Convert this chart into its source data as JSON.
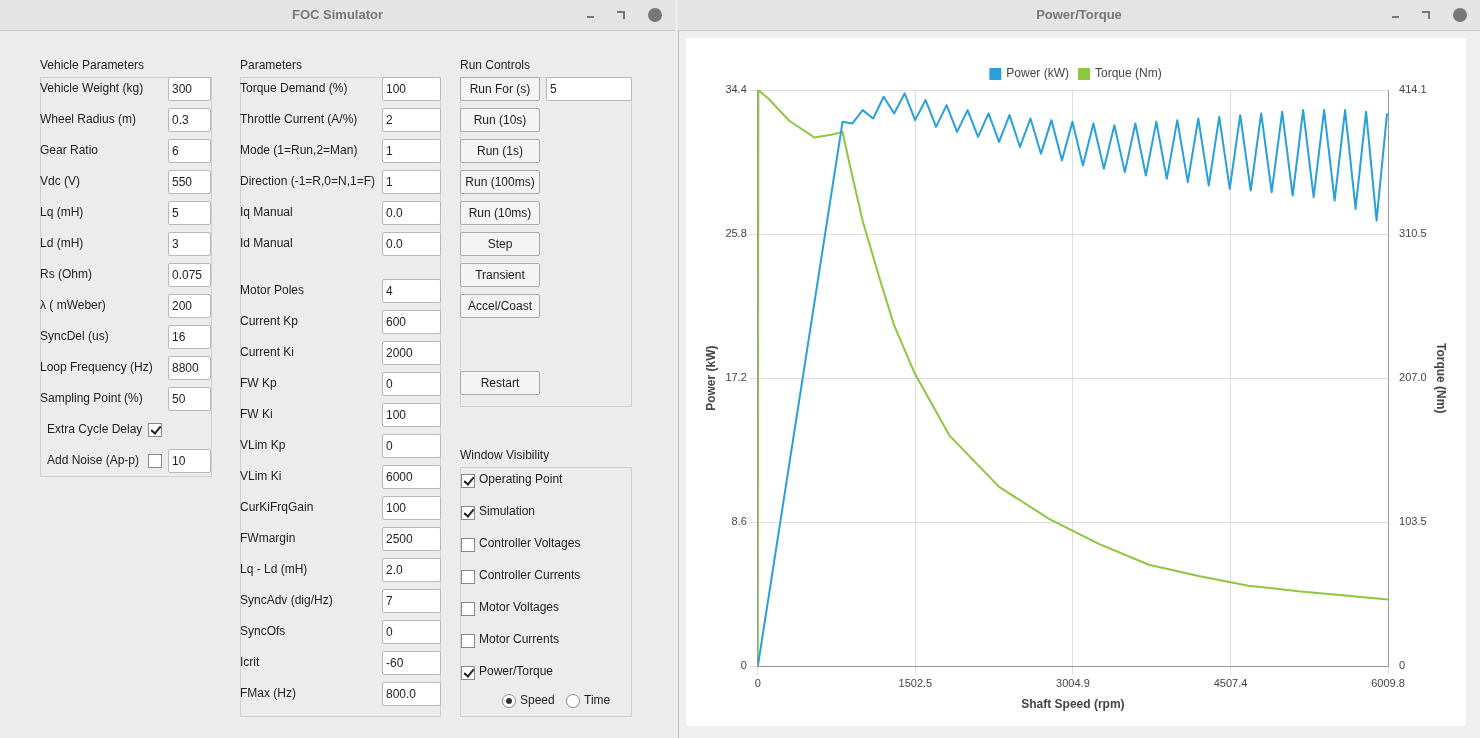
{
  "chart_data": [
    {
      "type": "other",
      "title": "FOC Simulator"
    },
    {
      "type": "other",
      "title": "Vehicle Parameters",
      "categories": [
        "Vehicle Weight (kg)",
        "Wheel Radius (m)",
        "Gear Ratio",
        "Vdc (V)",
        "Lq (mH)",
        "Ld (mH)",
        "Rs (Ohm)",
        "λ ( mWeber)",
        "SyncDel (us)",
        "Loop Frequency (Hz)",
        "Sampling Point (%)",
        "Extra Cycle Delay",
        "Add Noise (Ap-p)"
      ],
      "value_labels": [
        "300",
        "0.3",
        "6",
        "550",
        "5",
        "3",
        "0.075",
        "200",
        "16",
        "8800",
        "50",
        null,
        "10"
      ]
    },
    {
      "type": "other",
      "title": "Parameters",
      "categories": [
        "Torque Demand (%)",
        "Throttle Current (A/%)",
        "Mode (1=Run,2=Man)",
        "Direction (-1=R,0=N,1=F)",
        "Iq Manual",
        "Id Manual",
        "Motor Poles",
        "Current Kp",
        "Current Ki",
        "FW Kp",
        "FW Ki",
        "VLim Kp",
        "VLim Ki",
        "CurKiFrqGain",
        "FWmargin",
        "Lq - Ld (mH)",
        "SyncAdv (dig/Hz)",
        "SyncOfs",
        "Icrit",
        "FMax (Hz)"
      ],
      "value_labels": [
        "100",
        "2",
        "1",
        "1",
        "0.0",
        "0.0",
        "4",
        "600",
        "2000",
        "0",
        "100",
        "0",
        "6000",
        "100",
        "2500",
        "2.0",
        "7",
        "0",
        "-60",
        "800.0"
      ]
    },
    {
      "type": "other",
      "title": "Run Controls",
      "categories": [
        "Run For (s)",
        "Run (10s)",
        "Run (1s)",
        "Run (100ms)",
        "Run (10ms)",
        "Step",
        "Transient",
        "Accel/Coast",
        "Restart"
      ],
      "value_labels": [
        "5",
        null,
        null,
        null,
        null,
        null,
        null,
        null,
        null
      ]
    },
    {
      "type": "other",
      "title": "Window Visibility",
      "categories": [
        "Operating Point",
        "Simulation",
        "Controller Voltages",
        "Controller Currents",
        "Motor Voltages",
        "Motor Currents",
        "Power/Torque",
        "Speed",
        "Time"
      ]
    },
    {
      "type": "line",
      "title": "Power/Torque",
      "xlabel": "Shaft Speed (rpm)",
      "ylabel": "Power (kW)",
      "y2label": "Torque (Nm)",
      "xlim": [
        0,
        6009.8
      ],
      "xticks": [
        0,
        1502.5,
        3004.9,
        4507.4,
        6009.8
      ],
      "ylim": [
        0,
        34.4
      ],
      "yticks": [
        0,
        8.6,
        17.2,
        25.8,
        34.4
      ],
      "y2lim": [
        0,
        414.1
      ],
      "y2ticks": [
        0,
        103.5,
        {
          "value": 207,
          "label": "207.0"
        },
        310.5,
        414.1
      ],
      "grid": true,
      "legend": "top",
      "series": [
        {
          "name": "Power (kW)",
          "color": "#27a0dc",
          "axis": "y",
          "x": [
            0,
            808,
            900,
            1000,
            1100,
            1200,
            1300,
            1400,
            1500,
            1600,
            1700,
            1800,
            1900,
            2000,
            2100,
            2200,
            2300,
            2400,
            2500,
            2600,
            2700,
            2800,
            2900,
            3000,
            3100,
            3200,
            3300,
            3400,
            3500,
            3600,
            3700,
            3800,
            3900,
            4000,
            4100,
            4200,
            4300,
            4400,
            4500,
            4600,
            4700,
            4800,
            4900,
            5000,
            5100,
            5200,
            5300,
            5400,
            5500,
            5600,
            5700,
            5800,
            5900,
            6000
          ],
          "values": [
            0,
            32.5,
            32.4,
            33.2,
            32.7,
            34,
            33,
            34.2,
            32.6,
            33.8,
            32.2,
            33.5,
            31.9,
            33.2,
            31.6,
            33,
            31.3,
            32.9,
            31,
            32.7,
            30.6,
            32.6,
            30.2,
            32.5,
            29.9,
            32.4,
            29.7,
            32.3,
            29.5,
            32.4,
            29.3,
            32.5,
            29.1,
            32.6,
            28.9,
            32.7,
            28.7,
            32.8,
            28.5,
            32.9,
            28.4,
            33,
            28.3,
            33.1,
            28.1,
            33.2,
            28,
            33.2,
            27.8,
            33.2,
            27.3,
            33.1,
            26.6,
            33
          ]
        },
        {
          "name": "Torque (Nm)",
          "color": "#8dc63f",
          "axis": "y2",
          "x": [
            0,
            5,
            100,
            300,
            540,
            700,
            808,
            875,
            1000,
            1160,
            1300,
            1493,
            1826,
            2301,
            2777,
            3252,
            3728,
            4203,
            4679,
            5154,
            5600,
            6009.8
          ],
          "values": [
            0,
            414,
            408,
            392,
            380,
            382,
            384,
            361,
            320,
            279,
            245,
            211,
            166,
            129,
            106,
            88,
            73,
            65,
            58,
            54,
            51,
            48
          ]
        }
      ]
    }
  ]
}
